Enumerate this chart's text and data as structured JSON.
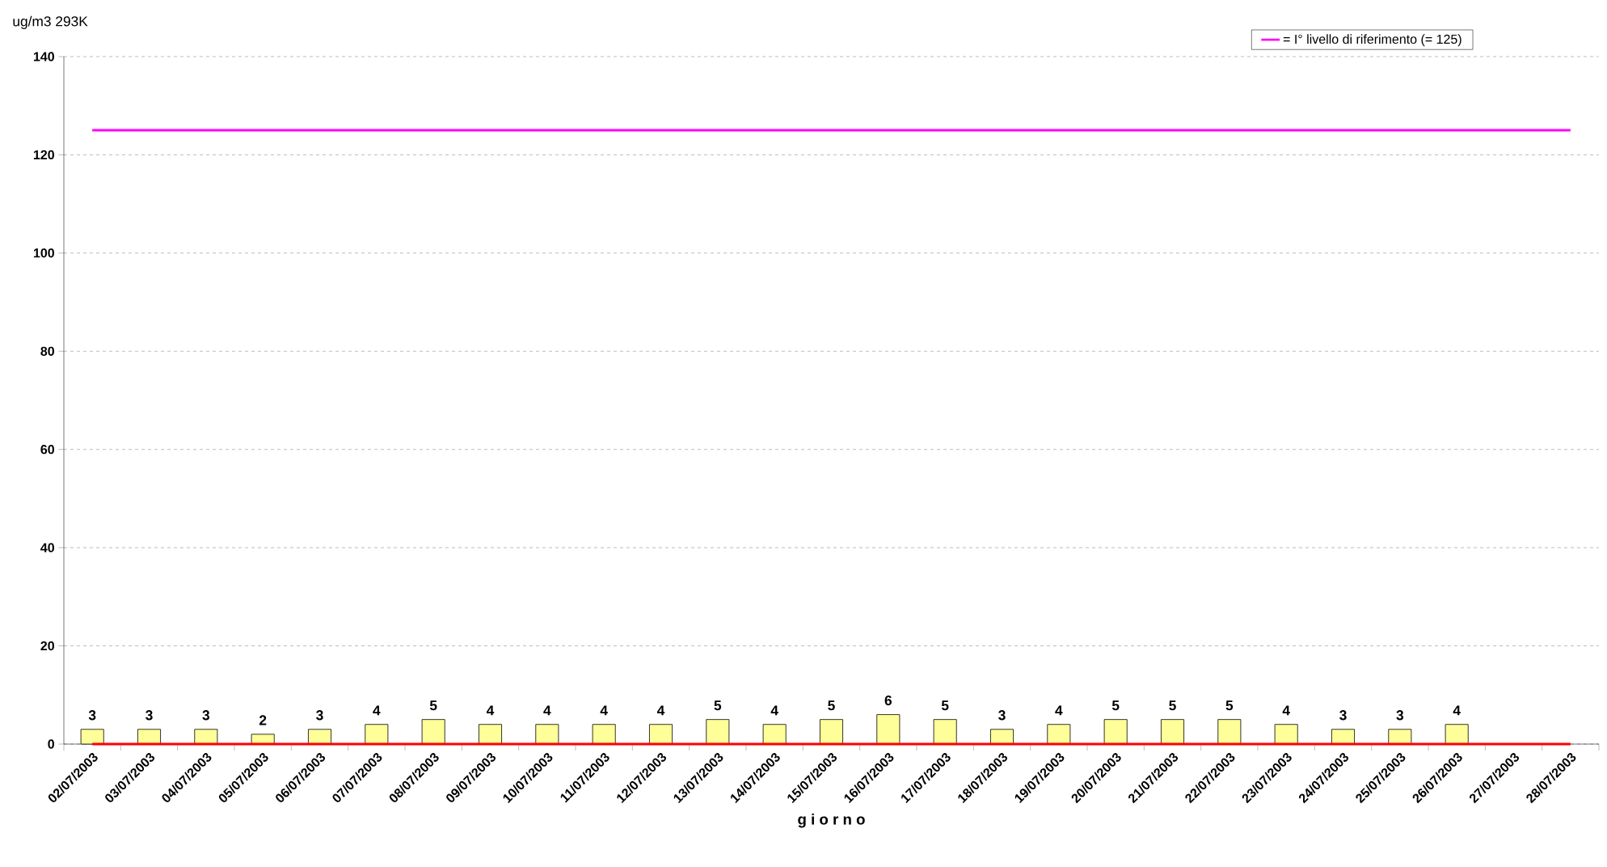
{
  "chart_data": {
    "type": "bar",
    "ylabel": "ug/m3 293K",
    "xlabel": "g i o r n o",
    "categories": [
      "02/07/2003",
      "03/07/2003",
      "04/07/2003",
      "05/07/2003",
      "06/07/2003",
      "07/07/2003",
      "08/07/2003",
      "09/07/2003",
      "10/07/2003",
      "11/07/2003",
      "12/07/2003",
      "13/07/2003",
      "14/07/2003",
      "15/07/2003",
      "16/07/2003",
      "17/07/2003",
      "18/07/2003",
      "19/07/2003",
      "20/07/2003",
      "21/07/2003",
      "22/07/2003",
      "23/07/2003",
      "24/07/2003",
      "25/07/2003",
      "26/07/2003",
      "27/07/2003",
      "28/07/2003"
    ],
    "series": [
      {
        "color": "#ffff99",
        "values": [
          3,
          3,
          3,
          2,
          3,
          4,
          5,
          4,
          4,
          4,
          4,
          5,
          4,
          5,
          6,
          5,
          3,
          4,
          5,
          5,
          5,
          4,
          3,
          3,
          4,
          null,
          null
        ],
        "value_labels": [
          "3",
          "3",
          "3",
          "2",
          "3",
          "4",
          "5",
          "4",
          "4",
          "4",
          "4",
          "5",
          "4",
          "5",
          "6",
          "5",
          "3",
          "4",
          "5",
          "5",
          "5",
          "4",
          "3",
          "3",
          "4",
          null,
          null
        ]
      },
      {
        "type": "line",
        "name": "= I° livello di riferimento (= 125)",
        "color": "#ff00ff",
        "values": [
          125,
          125,
          125,
          125,
          125,
          125,
          125,
          125,
          125,
          125,
          125,
          125,
          125,
          125,
          125,
          125,
          125,
          125,
          125,
          125,
          125,
          125,
          125,
          125,
          125,
          125,
          125
        ]
      },
      {
        "type": "line",
        "color": "#ff0000",
        "values": [
          0,
          0,
          0,
          0,
          0,
          0,
          0,
          0,
          0,
          0,
          0,
          0,
          0,
          0,
          0,
          0,
          0,
          0,
          0,
          0,
          0,
          0,
          0,
          0,
          0,
          0,
          0
        ]
      }
    ],
    "ylim": [
      0,
      140
    ],
    "yticks": [
      0,
      20,
      40,
      60,
      80,
      100,
      120,
      140
    ],
    "grid": "y",
    "legend": "top right"
  }
}
